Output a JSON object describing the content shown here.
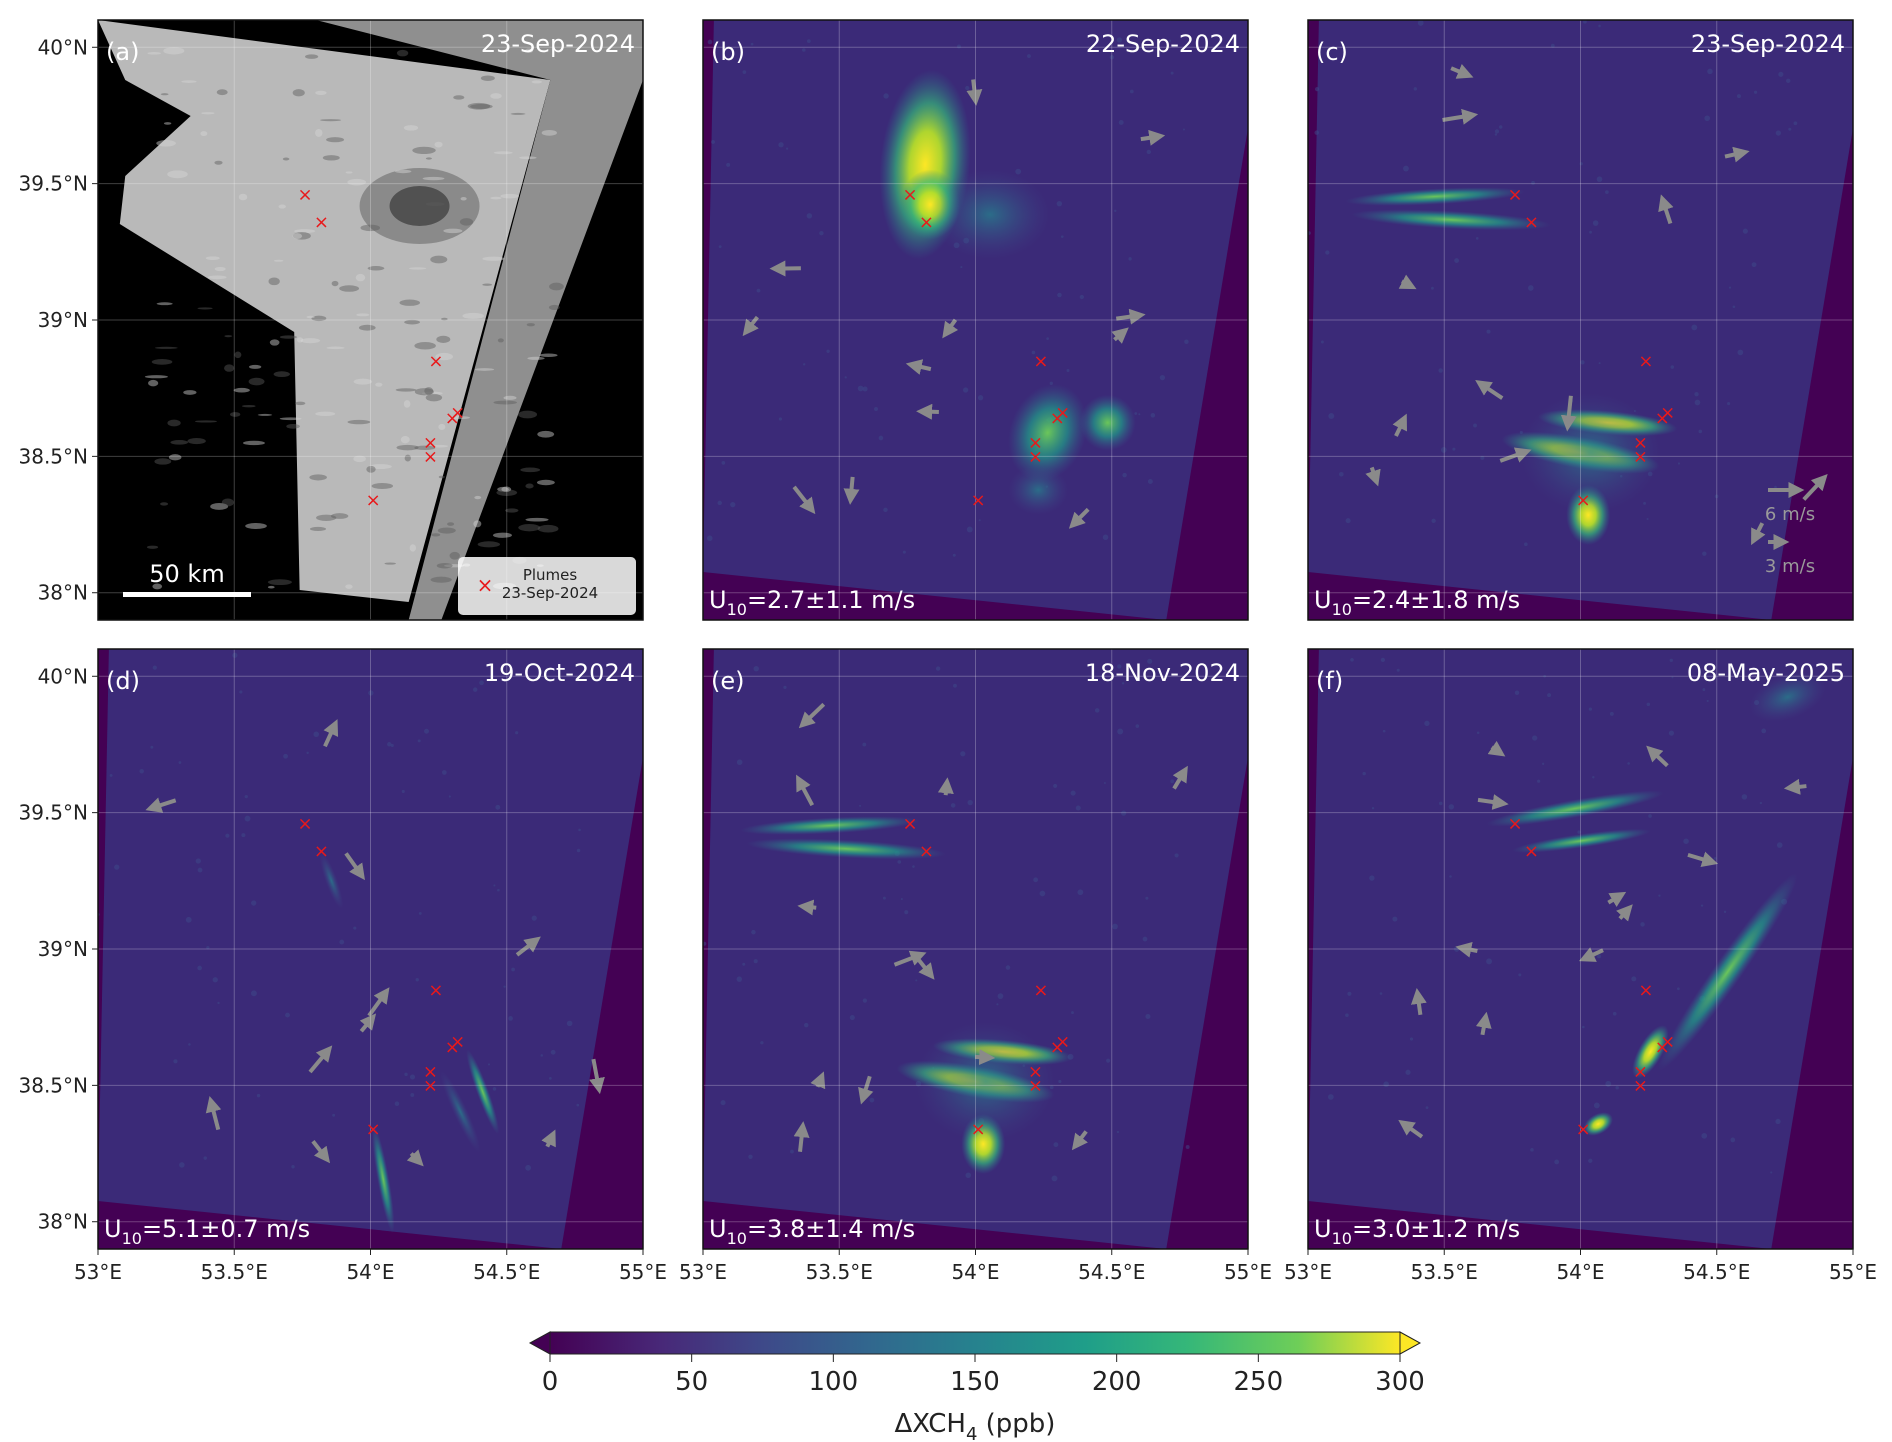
{
  "panels": [
    {
      "id": "a",
      "label": "(a)",
      "date": "23-Sep-2024",
      "wind": "",
      "type": "rgb",
      "scale_label": "50 km",
      "legend_marker_label": "Plumes",
      "legend_date": "23-Sep-2024",
      "plume_style": "none"
    },
    {
      "id": "b",
      "label": "(b)",
      "date": "22-Sep-2024",
      "wind_prefix": "U",
      "wind_sub": "10",
      "wind_value": "=2.7±1.1 m/s",
      "type": "xch4",
      "plume_style": "blob"
    },
    {
      "id": "c",
      "label": "(c)",
      "date": "23-Sep-2024",
      "wind_prefix": "U",
      "wind_sub": "10",
      "wind_value": "=2.4±1.8 m/s",
      "type": "xch4",
      "plume_style": "streak_west",
      "wind_key": [
        {
          "label": "6 m/s",
          "speed": 6
        },
        {
          "label": "3 m/s",
          "speed": 3
        }
      ]
    },
    {
      "id": "d",
      "label": "(d)",
      "date": "19-Oct-2024",
      "wind_prefix": "U",
      "wind_sub": "10",
      "wind_value": "=5.1±0.7 m/s",
      "type": "xch4",
      "plume_style": "streak_south"
    },
    {
      "id": "e",
      "label": "(e)",
      "date": "18-Nov-2024",
      "wind_prefix": "U",
      "wind_sub": "10",
      "wind_value": "=3.8±1.4 m/s",
      "type": "xch4",
      "plume_style": "streak_west"
    },
    {
      "id": "f",
      "label": "(f)",
      "date": "08-May-2025",
      "wind_prefix": "U",
      "wind_sub": "10",
      "wind_value": "=3.0±1.2 m/s",
      "type": "xch4",
      "plume_style": "streak_northeast"
    }
  ],
  "map_extent": {
    "lon": [
      53.0,
      55.0
    ],
    "lat": [
      37.9,
      40.1
    ]
  },
  "lat_ticks": [
    {
      "value": 38.0,
      "label": "38°N"
    },
    {
      "value": 38.5,
      "label": "38.5°N"
    },
    {
      "value": 39.0,
      "label": "39°N"
    },
    {
      "value": 39.5,
      "label": "39.5°N"
    },
    {
      "value": 40.0,
      "label": "40°N"
    }
  ],
  "lon_ticks": [
    {
      "value": 53.0,
      "label": "53°E"
    },
    {
      "value": 53.5,
      "label": "53.5°E"
    },
    {
      "value": 54.0,
      "label": "54°E"
    },
    {
      "value": 54.5,
      "label": "54.5°E"
    },
    {
      "value": 55.0,
      "label": "55°E"
    }
  ],
  "plume_sources": [
    {
      "lon": 53.76,
      "lat": 39.46
    },
    {
      "lon": 53.82,
      "lat": 39.36
    },
    {
      "lon": 54.24,
      "lat": 38.85
    },
    {
      "lon": 54.3,
      "lat": 38.64
    },
    {
      "lon": 54.32,
      "lat": 38.66
    },
    {
      "lon": 54.22,
      "lat": 38.55
    },
    {
      "lon": 54.22,
      "lat": 38.5
    },
    {
      "lon": 54.01,
      "lat": 38.34
    }
  ],
  "colorbar": {
    "label_main": "ΔXCH",
    "label_sub": "4",
    "label_unit": " (ppb)",
    "range": [
      0,
      300
    ],
    "ticks": [
      {
        "value": 0,
        "label": "0"
      },
      {
        "value": 50,
        "label": "50"
      },
      {
        "value": 100,
        "label": "100"
      },
      {
        "value": 150,
        "label": "150"
      },
      {
        "value": 200,
        "label": "200"
      },
      {
        "value": 250,
        "label": "250"
      },
      {
        "value": 300,
        "label": "300"
      }
    ],
    "colormap": "viridis",
    "extend": "both"
  },
  "colors": {
    "background_low": "#440154",
    "swath": "#3b2a78",
    "marker": "#e8191b",
    "arrow": "#8a8a8a"
  }
}
